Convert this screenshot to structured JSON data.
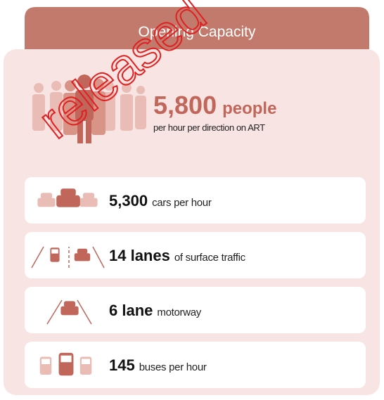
{
  "header": {
    "title": "Opening Capacity"
  },
  "headline": {
    "number": "5,800",
    "unit": "people",
    "caption": "per hour per direction on ART"
  },
  "rows": [
    {
      "figure": "5,300",
      "text": "cars per hour"
    },
    {
      "figure": "14 lanes",
      "text": "of surface traffic"
    },
    {
      "figure": "6 lane",
      "text": "motorway"
    },
    {
      "figure": "145",
      "text": "buses per hour"
    }
  ],
  "watermark": "released"
}
